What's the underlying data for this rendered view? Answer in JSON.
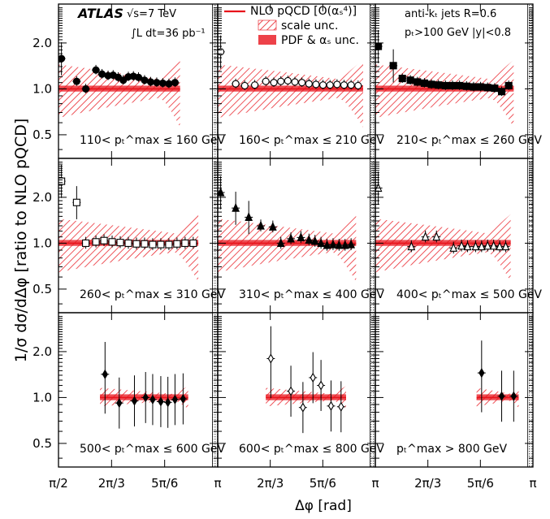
{
  "chart_data": {
    "type": "scatter",
    "ylabel": "1/σ dσ/dΔφ [ratio to NLO pQCD]",
    "xlabel": "Δφ [rad]",
    "x_tick_labels": [
      "π/2",
      "2π/3",
      "5π/6",
      "π"
    ],
    "y_tick_labels": [
      "0.5",
      "1.0",
      "2.0"
    ],
    "experiment": "ATLAS",
    "energy": "√s=7 TeV",
    "lumi": "∫L dt=36 pb⁻¹",
    "jet_algo": "anti-kₜ jets R=0.6",
    "jet_cuts": "pₜ>100 GeV |y|<0.8",
    "legend": [
      {
        "label": "NLO pQCD [O(αₛ⁴)]",
        "kind": "line",
        "color": "#e8131b"
      },
      {
        "label": "scale unc.",
        "kind": "hatch",
        "color": "#e8131b"
      },
      {
        "label": "PDF & αₛ unc.",
        "kind": "fill",
        "color": "#e8131b"
      }
    ],
    "panels": [
      {
        "label": "110< pₜ^max ≤ 160 GeV",
        "marker": "circle",
        "filled": true,
        "points": [
          [
            1.6,
            1.58
          ],
          [
            1.75,
            1.12
          ],
          [
            1.84,
            1.0
          ],
          [
            1.94,
            1.33
          ],
          [
            2.0,
            1.25
          ],
          [
            2.06,
            1.22
          ],
          [
            2.11,
            1.23
          ],
          [
            2.16,
            1.19
          ],
          [
            2.21,
            1.14
          ],
          [
            2.26,
            1.2
          ],
          [
            2.31,
            1.21
          ],
          [
            2.36,
            1.19
          ],
          [
            2.42,
            1.14
          ],
          [
            2.48,
            1.11
          ],
          [
            2.54,
            1.1
          ],
          [
            2.6,
            1.09
          ],
          [
            2.66,
            1.08
          ],
          [
            2.72,
            1.1
          ]
        ]
      },
      {
        "label": "160< pₜ^max ≤ 210 GeV",
        "marker": "circle",
        "filled": false,
        "points": [
          [
            1.6,
            1.75
          ],
          [
            1.75,
            1.08
          ],
          [
            1.84,
            1.05
          ],
          [
            1.94,
            1.06
          ],
          [
            2.05,
            1.12
          ],
          [
            2.13,
            1.1
          ],
          [
            2.2,
            1.12
          ],
          [
            2.27,
            1.13
          ],
          [
            2.34,
            1.11
          ],
          [
            2.41,
            1.1
          ],
          [
            2.48,
            1.08
          ],
          [
            2.55,
            1.07
          ],
          [
            2.62,
            1.06
          ],
          [
            2.69,
            1.06
          ],
          [
            2.76,
            1.07
          ],
          [
            2.83,
            1.06
          ],
          [
            2.9,
            1.06
          ],
          [
            2.97,
            1.05
          ]
        ]
      },
      {
        "label": "210< pₜ^max ≤ 260 GeV",
        "marker": "square",
        "filled": true,
        "points": [
          [
            1.6,
            1.9
          ],
          [
            1.75,
            1.42
          ],
          [
            1.84,
            1.17
          ],
          [
            1.92,
            1.14
          ],
          [
            1.99,
            1.11
          ],
          [
            2.06,
            1.09
          ],
          [
            2.13,
            1.07
          ],
          [
            2.2,
            1.06
          ],
          [
            2.27,
            1.05
          ],
          [
            2.34,
            1.05
          ],
          [
            2.41,
            1.05
          ],
          [
            2.48,
            1.04
          ],
          [
            2.55,
            1.03
          ],
          [
            2.62,
            1.03
          ],
          [
            2.69,
            1.02
          ],
          [
            2.76,
            1.01
          ],
          [
            2.83,
            0.96
          ],
          [
            2.9,
            1.05
          ]
        ]
      },
      {
        "label": "260< pₜ^max ≤ 310 GeV",
        "marker": "square",
        "filled": false,
        "points": [
          [
            1.6,
            2.55
          ],
          [
            1.75,
            1.85
          ],
          [
            1.84,
            1.0
          ],
          [
            1.94,
            1.02
          ],
          [
            2.02,
            1.04
          ],
          [
            2.1,
            1.02
          ],
          [
            2.18,
            1.01
          ],
          [
            2.26,
            1.0
          ],
          [
            2.34,
            0.99
          ],
          [
            2.42,
            0.99
          ],
          [
            2.5,
            0.98
          ],
          [
            2.58,
            0.98
          ],
          [
            2.66,
            0.98
          ],
          [
            2.74,
            0.99
          ],
          [
            2.82,
            1.0
          ],
          [
            2.9,
            1.0
          ]
        ]
      },
      {
        "label": "310< pₜ^max ≤ 400 GeV",
        "marker": "triangle",
        "filled": true,
        "points": [
          [
            1.6,
            2.15
          ],
          [
            1.75,
            1.7
          ],
          [
            1.88,
            1.48
          ],
          [
            2.0,
            1.3
          ],
          [
            2.12,
            1.28
          ],
          [
            2.2,
            1.0
          ],
          [
            2.3,
            1.07
          ],
          [
            2.4,
            1.09
          ],
          [
            2.48,
            1.05
          ],
          [
            2.54,
            1.03
          ],
          [
            2.6,
            1.0
          ],
          [
            2.66,
            0.97
          ],
          [
            2.72,
            0.98
          ],
          [
            2.78,
            0.97
          ],
          [
            2.84,
            0.97
          ],
          [
            2.9,
            0.98
          ]
        ]
      },
      {
        "label": "400< pₜ^max ≤ 500 GeV",
        "marker": "triangle",
        "filled": false,
        "points": [
          [
            1.6,
            2.3
          ],
          [
            1.93,
            0.95
          ],
          [
            2.07,
            1.1
          ],
          [
            2.18,
            1.1
          ],
          [
            2.35,
            0.93
          ],
          [
            2.43,
            0.96
          ],
          [
            2.49,
            0.95
          ],
          [
            2.57,
            0.95
          ],
          [
            2.63,
            0.95
          ],
          [
            2.69,
            0.96
          ],
          [
            2.75,
            0.96
          ],
          [
            2.81,
            0.95
          ],
          [
            2.87,
            0.95
          ]
        ]
      },
      {
        "label": "500< pₜ^max ≤ 600 GeV",
        "marker": "diamond",
        "filled": true,
        "points": [
          [
            2.03,
            1.42
          ],
          [
            2.17,
            0.92
          ],
          [
            2.32,
            0.95
          ],
          [
            2.43,
            1.0
          ],
          [
            2.5,
            0.97
          ],
          [
            2.58,
            0.94
          ],
          [
            2.65,
            0.93
          ],
          [
            2.72,
            0.97
          ],
          [
            2.8,
            0.98
          ]
        ]
      },
      {
        "label": "600< pₜ^max ≤ 800 GeV",
        "marker": "diamond",
        "filled": false,
        "points": [
          [
            2.1,
            1.8
          ],
          [
            2.3,
            1.1
          ],
          [
            2.42,
            0.86
          ],
          [
            2.52,
            1.35
          ],
          [
            2.6,
            1.2
          ],
          [
            2.7,
            0.88
          ],
          [
            2.8,
            0.87
          ]
        ]
      },
      {
        "label": "pₜ^max > 800 GeV",
        "marker": "diamond",
        "filled": true,
        "points": [
          [
            2.63,
            1.45
          ],
          [
            2.83,
            1.02
          ],
          [
            2.95,
            1.02
          ]
        ]
      }
    ]
  }
}
